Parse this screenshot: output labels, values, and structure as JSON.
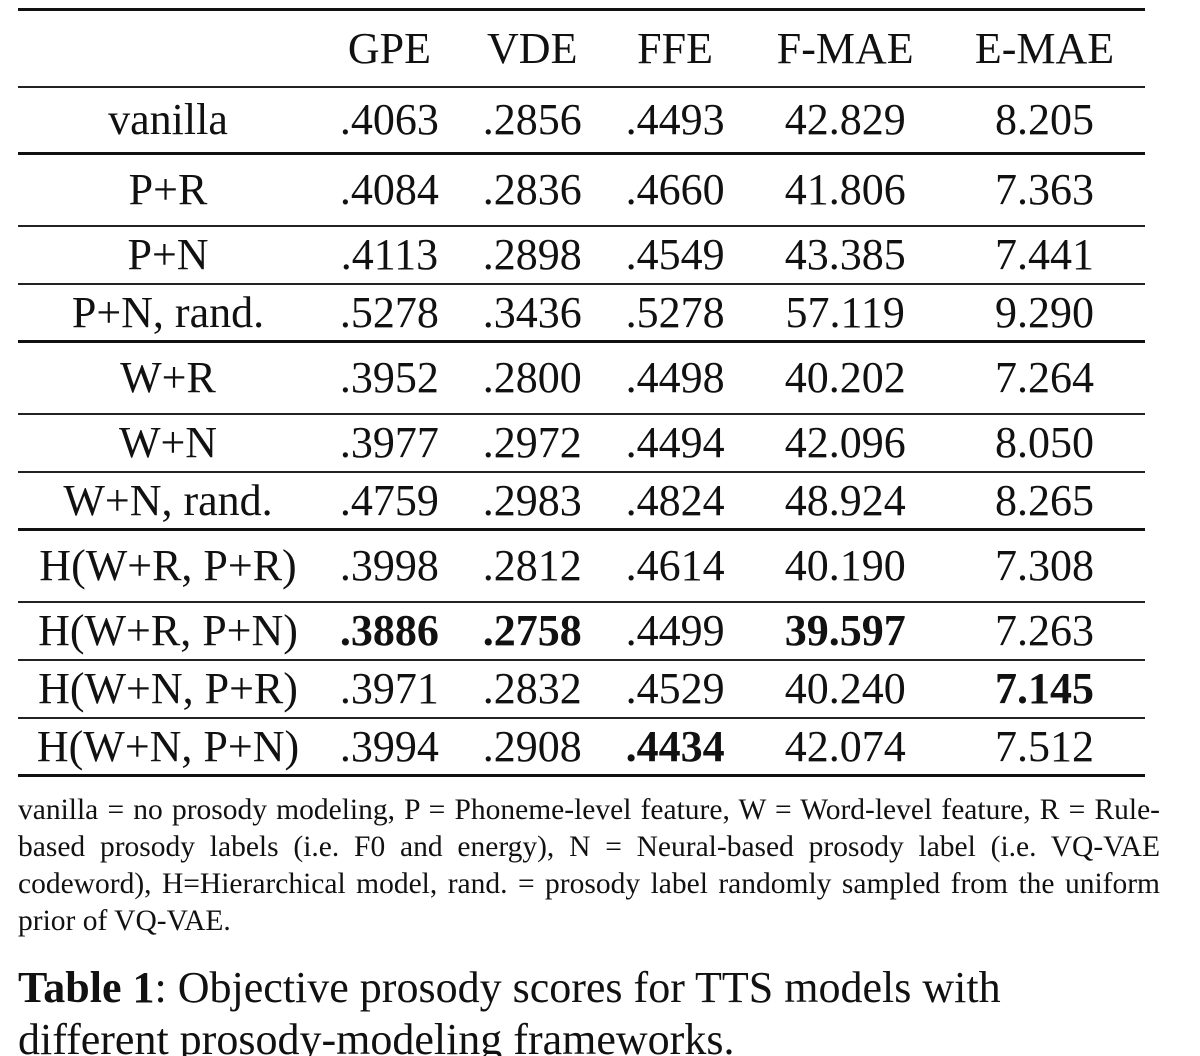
{
  "table": {
    "header": [
      "GPE",
      "VDE",
      "FFE",
      "F-MAE",
      "E-MAE"
    ],
    "rows": [
      {
        "label": "vanilla",
        "values": [
          ".4063",
          ".2856",
          ".4493",
          "42.829",
          "8.205"
        ]
      },
      {
        "label": "P+R",
        "values": [
          ".4084",
          ".2836",
          ".4660",
          "41.806",
          "7.363"
        ]
      },
      {
        "label": "P+N",
        "values": [
          ".4113",
          ".2898",
          ".4549",
          "43.385",
          "7.441"
        ]
      },
      {
        "label": "P+N, rand.",
        "values": [
          ".5278",
          ".3436",
          ".5278",
          "57.119",
          "9.290"
        ]
      },
      {
        "label": "W+R",
        "values": [
          ".3952",
          ".2800",
          ".4498",
          "40.202",
          "7.264"
        ]
      },
      {
        "label": "W+N",
        "values": [
          ".3977",
          ".2972",
          ".4494",
          "42.096",
          "8.050"
        ]
      },
      {
        "label": "W+N, rand.",
        "values": [
          ".4759",
          ".2983",
          ".4824",
          "48.924",
          "8.265"
        ]
      },
      {
        "label": "H(W+R, P+R)",
        "values": [
          ".3998",
          ".2812",
          ".4614",
          "40.190",
          "7.308"
        ]
      },
      {
        "label": "H(W+R, P+N)",
        "values": [
          ".3886",
          ".2758",
          ".4499",
          "39.597",
          "7.263"
        ]
      },
      {
        "label": "H(W+N, P+R)",
        "values": [
          ".3971",
          ".2832",
          ".4529",
          "40.240",
          "7.145"
        ]
      },
      {
        "label": "H(W+N, P+N)",
        "values": [
          ".3994",
          ".2908",
          ".4434",
          "42.074",
          "7.512"
        ]
      }
    ],
    "footnote": "vanilla = no prosody modeling, P = Phoneme-level feature, W = Word-level feature, R = Rule-based prosody labels (i.e. F0 and energy), N = Neural-based prosody label (i.e. VQ-VAE codeword), H=Hierarchical model, rand. = prosody label randomly sampled from the uniform prior of VQ-VAE."
  },
  "caption": {
    "label": "Table 1",
    "text": ": Objective prosody scores for TTS models with different prosody-modeling frameworks."
  }
}
